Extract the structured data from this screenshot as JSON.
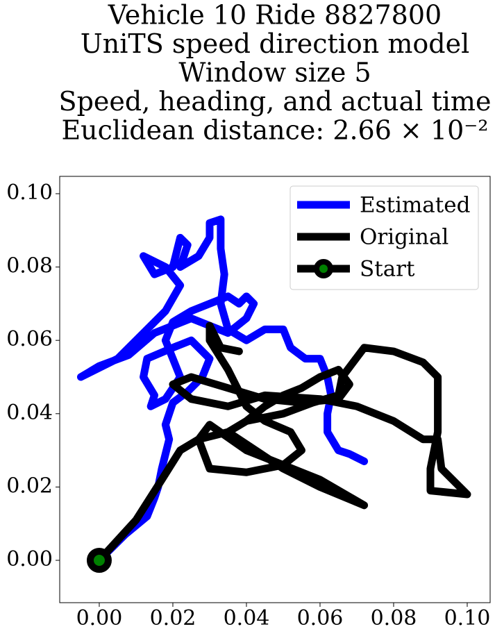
{
  "chart_data": {
    "type": "line",
    "title": [
      "Vehicle 10 Ride 8827800",
      "UniTS speed direction model",
      "Window size 5",
      "Speed, heading, and actual time",
      "Euclidean distance: 2.66 × 10⁻²"
    ],
    "xlim": [
      -0.01075,
      0.10623
    ],
    "ylim": [
      -0.01155,
      0.10473
    ],
    "xticks": [
      {
        "value": 0,
        "label": "0.00"
      },
      {
        "value": 0.02,
        "label": "0.02"
      },
      {
        "value": 0.04,
        "label": "0.04"
      },
      {
        "value": 0.06,
        "label": "0.06"
      },
      {
        "value": 0.08,
        "label": "0.08"
      },
      {
        "value": 0.1,
        "label": "0.10"
      }
    ],
    "yticks": [
      {
        "value": 0,
        "label": "0.00"
      },
      {
        "value": 0.02,
        "label": "0.02"
      },
      {
        "value": 0.04,
        "label": "0.04"
      },
      {
        "value": 0.06,
        "label": "0.06"
      },
      {
        "value": 0.08,
        "label": "0.08"
      },
      {
        "value": 0.1,
        "label": "0.10"
      }
    ],
    "legend": "upper right",
    "series": [
      {
        "name": "Estimated",
        "color": "#0000ff",
        "x": [
          0,
          0.007,
          0.013,
          0.015,
          0.016,
          0.017,
          0.018,
          0.019,
          0.018,
          0.02,
          0.024,
          0.028,
          0.03,
          0.025,
          0.02,
          0.013,
          0.012,
          0.015,
          0.014,
          0.018,
          0.022,
          0.02,
          0.018,
          0.02,
          0.025,
          0.03,
          0.035,
          0.038,
          0.04,
          0.042,
          0.04,
          0.035,
          0.03,
          0.025,
          0.015,
          0.008,
          0.0,
          -0.005,
          0.005,
          0.012,
          0.018,
          0.022,
          0.018,
          0.012,
          0.015,
          0.02,
          0.022,
          0.024,
          0.022,
          0.027,
          0.03,
          0.03,
          0.033,
          0.033,
          0.034,
          0.033,
          0.035,
          0.04,
          0.045,
          0.05,
          0.052,
          0.056,
          0.06,
          0.062,
          0.063,
          0.062,
          0.062,
          0.065,
          0.068,
          0.072
        ],
        "values": [
          0,
          0.007,
          0.012,
          0.017,
          0.02,
          0.025,
          0.029,
          0.033,
          0.037,
          0.043,
          0.046,
          0.05,
          0.055,
          0.06,
          0.058,
          0.055,
          0.05,
          0.045,
          0.042,
          0.044,
          0.05,
          0.055,
          0.06,
          0.065,
          0.068,
          0.07,
          0.072,
          0.07,
          0.072,
          0.07,
          0.066,
          0.062,
          0.064,
          0.066,
          0.062,
          0.056,
          0.053,
          0.05,
          0.055,
          0.062,
          0.068,
          0.075,
          0.08,
          0.083,
          0.078,
          0.08,
          0.088,
          0.086,
          0.08,
          0.083,
          0.088,
          0.092,
          0.093,
          0.085,
          0.078,
          0.07,
          0.063,
          0.06,
          0.063,
          0.063,
          0.058,
          0.055,
          0.055,
          0.05,
          0.045,
          0.04,
          0.035,
          0.03,
          0.029,
          0.027
        ]
      },
      {
        "name": "Original",
        "color": "#000000",
        "x": [
          0,
          0.01,
          0.017,
          0.022,
          0.027,
          0.035,
          0.04,
          0.045,
          0.05,
          0.055,
          0.06,
          0.065,
          0.068,
          0.065,
          0.055,
          0.045,
          0.035,
          0.025,
          0.02,
          0.025,
          0.035,
          0.045,
          0.06,
          0.07,
          0.08,
          0.088,
          0.092,
          0.093,
          0.1,
          0.09,
          0.09,
          0.092,
          0.092,
          0.088,
          0.08,
          0.072,
          0.066,
          0.065,
          0.058,
          0.05,
          0.04,
          0.035,
          0.05,
          0.06,
          0.072,
          0.06,
          0.04,
          0.03,
          0.027,
          0.03,
          0.04,
          0.05,
          0.055,
          0.052,
          0.045,
          0.04,
          0.035,
          0.03,
          0.03,
          0.033,
          0.038
        ],
        "values": [
          0,
          0.011,
          0.022,
          0.03,
          0.033,
          0.035,
          0.038,
          0.042,
          0.045,
          0.047,
          0.05,
          0.052,
          0.048,
          0.044,
          0.043,
          0.044,
          0.047,
          0.05,
          0.048,
          0.044,
          0.042,
          0.045,
          0.044,
          0.042,
          0.038,
          0.033,
          0.033,
          0.025,
          0.018,
          0.019,
          0.025,
          0.035,
          0.05,
          0.054,
          0.057,
          0.058,
          0.05,
          0.045,
          0.043,
          0.04,
          0.038,
          0.035,
          0.025,
          0.02,
          0.015,
          0.022,
          0.03,
          0.037,
          0.033,
          0.025,
          0.024,
          0.026,
          0.03,
          0.035,
          0.038,
          0.042,
          0.052,
          0.06,
          0.064,
          0.058,
          0.057
        ]
      },
      {
        "name": "Start",
        "color": "#000000",
        "marker_color": "#008000",
        "x": [
          0
        ],
        "values": [
          0
        ]
      }
    ]
  }
}
